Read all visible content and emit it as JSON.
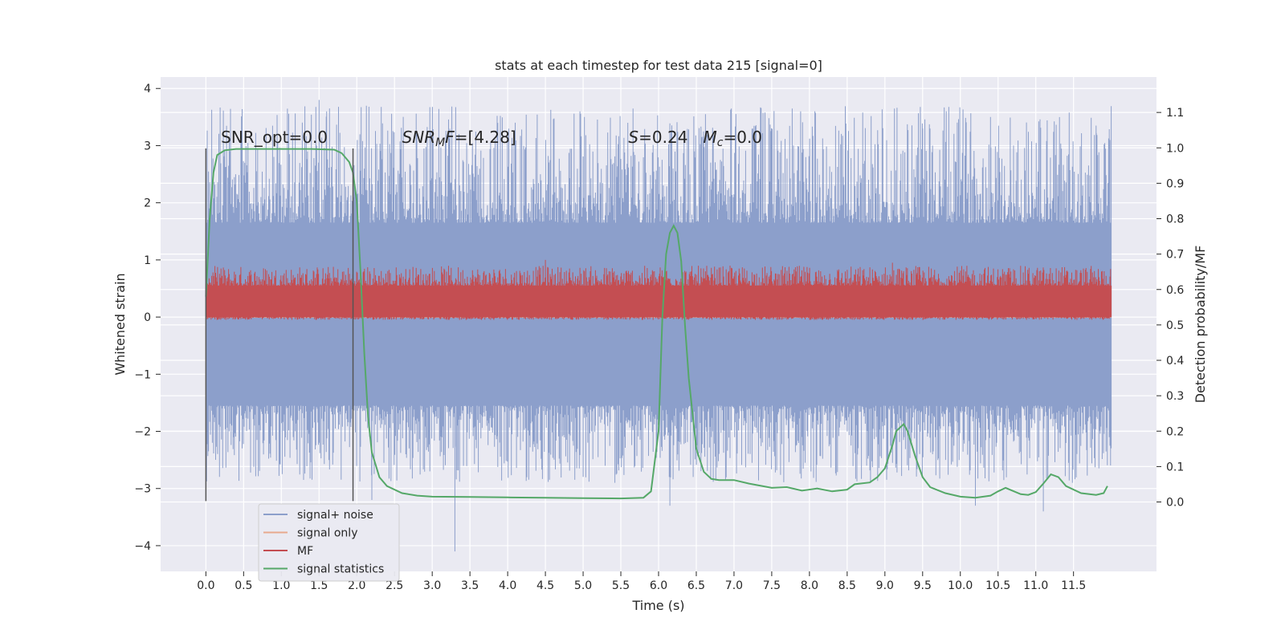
{
  "chart_data": {
    "type": "line",
    "title": "stats at each timestep for test data 215 [signal=0]",
    "xlabel": "Time (s)",
    "ylabel": "Whitened strain",
    "y2label": "Detection probability/MF",
    "xlim": [
      -0.6,
      12.6
    ],
    "ylim": [
      -4.45,
      4.2
    ],
    "y2lim": [
      -0.196,
      1.2
    ],
    "xticks": [
      0.0,
      0.5,
      1.0,
      1.5,
      2.0,
      2.5,
      3.0,
      3.5,
      4.0,
      4.5,
      5.0,
      5.5,
      6.0,
      6.5,
      7.0,
      7.5,
      8.0,
      8.5,
      9.0,
      9.5,
      10.0,
      10.5,
      11.0,
      11.5
    ],
    "xtick_labels": [
      "0.0",
      "0.5",
      "1.0",
      "1.5",
      "2.0",
      "2.5",
      "3.0",
      "3.5",
      "4.0",
      "4.5",
      "5.0",
      "5.5",
      "6.0",
      "6.5",
      "7.0",
      "7.5",
      "8.0",
      "8.5",
      "9.0",
      "9.5",
      "10.0",
      "10.5",
      "11.0",
      "11.5"
    ],
    "yticks": [
      -4,
      -3,
      -2,
      -1,
      0,
      1,
      2,
      3,
      4
    ],
    "ytick_labels": [
      "−4",
      "−3",
      "−2",
      "−1",
      "0",
      "1",
      "2",
      "3",
      "4"
    ],
    "y2ticks": [
      0.0,
      0.1,
      0.2,
      0.3,
      0.4,
      0.5,
      0.6,
      0.7,
      0.8,
      0.9,
      1.0,
      1.1
    ],
    "y2tick_labels": [
      "0.0",
      "0.1",
      "0.2",
      "0.3",
      "0.4",
      "0.5",
      "0.6",
      "0.7",
      "0.8",
      "0.9",
      "1.0",
      "1.1"
    ],
    "grid": true,
    "legend_position": "lower-left",
    "annotations": [
      {
        "text": "SNR_opt=0.0",
        "x": 0.2,
        "y": 3.05
      },
      {
        "text": "SNR_MF=[4.28]",
        "x": 2.6,
        "y": 3.05
      },
      {
        "text": "S=0.24   M_c=0.0",
        "x": 5.6,
        "y": 3.05
      }
    ],
    "vlines": [
      {
        "x": 0.0,
        "ymin": -3.22,
        "ymax": 2.95
      },
      {
        "x": 1.95,
        "ymin": -3.22,
        "ymax": 2.95
      }
    ],
    "series": [
      {
        "name": "signal+ noise",
        "color": "#8c9fcb",
        "axis": "left",
        "kind": "noise",
        "x_range": [
          0.0,
          12.0
        ],
        "core_range": [
          -1.55,
          1.65
        ],
        "extent_range": [
          -2.9,
          3.7
        ],
        "peaks": [
          {
            "x": 1.5,
            "y": 3.8
          },
          {
            "x": 1.6,
            "y": 3.6
          },
          {
            "x": 10.4,
            "y": 3.5
          },
          {
            "x": 11.8,
            "y": 3.35
          },
          {
            "x": 9.5,
            "y": 3.3
          },
          {
            "x": 3.3,
            "y": -4.1
          },
          {
            "x": 11.1,
            "y": -3.4
          },
          {
            "x": 2.2,
            "y": -3.2
          },
          {
            "x": 6.15,
            "y": -3.3
          },
          {
            "x": 10.2,
            "y": -3.3
          }
        ]
      },
      {
        "name": "signal only",
        "color": "#e8a98d",
        "axis": "left",
        "kind": "flat",
        "value": 0.0,
        "x_range": [
          0.0,
          12.0
        ]
      },
      {
        "name": "MF",
        "color": "#c44e52",
        "axis": "left",
        "kind": "noise",
        "x_range": [
          0.0,
          12.0
        ],
        "core_range": [
          0.0,
          0.55
        ],
        "extent_range": [
          -0.05,
          0.9
        ],
        "peaks": [
          {
            "x": 4.5,
            "y": 1.0
          },
          {
            "x": 9.1,
            "y": 0.95
          },
          {
            "x": 0.2,
            "y": 0.85
          },
          {
            "x": 6.1,
            "y": 0.8
          },
          {
            "x": 7.6,
            "y": 0.75
          }
        ]
      },
      {
        "name": "signal statistics",
        "color": "#55a868",
        "axis": "right",
        "kind": "line",
        "x": [
          0.0,
          0.05,
          0.1,
          0.15,
          0.25,
          0.4,
          0.6,
          1.0,
          1.4,
          1.7,
          1.8,
          1.9,
          1.95,
          2.0,
          2.05,
          2.1,
          2.15,
          2.2,
          2.3,
          2.4,
          2.6,
          2.8,
          3.0,
          3.5,
          4.0,
          4.5,
          5.0,
          5.5,
          5.8,
          5.9,
          6.0,
          6.05,
          6.1,
          6.15,
          6.2,
          6.25,
          6.3,
          6.35,
          6.4,
          6.5,
          6.6,
          6.7,
          6.8,
          7.0,
          7.2,
          7.5,
          7.7,
          7.9,
          8.1,
          8.3,
          8.5,
          8.6,
          8.8,
          8.9,
          9.0,
          9.1,
          9.15,
          9.25,
          9.3,
          9.4,
          9.5,
          9.6,
          9.8,
          10.0,
          10.2,
          10.4,
          10.5,
          10.6,
          10.8,
          10.9,
          11.0,
          11.1,
          11.2,
          11.3,
          11.4,
          11.6,
          11.8,
          11.9,
          11.95
        ],
        "y": [
          0.58,
          0.8,
          0.93,
          0.98,
          0.993,
          0.997,
          0.997,
          0.997,
          0.997,
          0.995,
          0.985,
          0.96,
          0.93,
          0.85,
          0.65,
          0.42,
          0.24,
          0.14,
          0.07,
          0.045,
          0.025,
          0.018,
          0.015,
          0.014,
          0.013,
          0.012,
          0.011,
          0.01,
          0.012,
          0.03,
          0.2,
          0.52,
          0.7,
          0.76,
          0.78,
          0.76,
          0.68,
          0.5,
          0.35,
          0.15,
          0.085,
          0.065,
          0.062,
          0.062,
          0.052,
          0.04,
          0.042,
          0.032,
          0.038,
          0.03,
          0.035,
          0.05,
          0.055,
          0.07,
          0.095,
          0.16,
          0.2,
          0.22,
          0.2,
          0.13,
          0.07,
          0.042,
          0.025,
          0.015,
          0.012,
          0.018,
          0.03,
          0.04,
          0.022,
          0.02,
          0.028,
          0.052,
          0.078,
          0.07,
          0.045,
          0.025,
          0.02,
          0.025,
          0.045
        ]
      }
    ]
  }
}
